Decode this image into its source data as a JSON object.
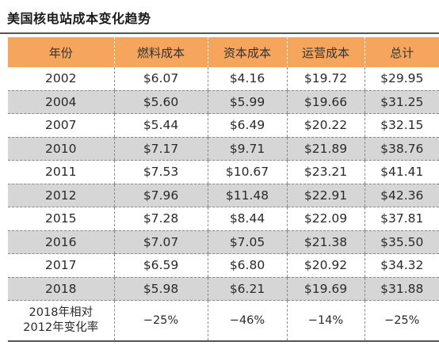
{
  "title": "美国核电站成本变化趋势",
  "table": {
    "headers": [
      "年份",
      "燃料成本",
      "资本成本",
      "运营成本",
      "总计"
    ],
    "rows": [
      [
        "2002",
        "$6.07",
        "$4.16",
        "$19.72",
        "$29.95"
      ],
      [
        "2004",
        "$5.60",
        "$5.99",
        "$19.66",
        "$31.25"
      ],
      [
        "2007",
        "$5.44",
        "$6.49",
        "$20.22",
        "$32.15"
      ],
      [
        "2010",
        "$7.17",
        "$9.71",
        "$21.89",
        "$38.76"
      ],
      [
        "2011",
        "$7.53",
        "$10.67",
        "$23.21",
        "$41.41"
      ],
      [
        "2012",
        "$7.96",
        "$11.48",
        "$22.91",
        "$42.36"
      ],
      [
        "2015",
        "$7.28",
        "$8.44",
        "$22.09",
        "$37.81"
      ],
      [
        "2016",
        "$7.07",
        "$7.05",
        "$21.38",
        "$35.50"
      ],
      [
        "2017",
        "$6.59",
        "$6.80",
        "$20.92",
        "$34.32"
      ],
      [
        "2018",
        "$5.98",
        "$6.21",
        "$19.69",
        "$31.88"
      ]
    ],
    "change_row": {
      "label_line1": "2018年相对",
      "label_line2": "2012年变化率",
      "values": [
        "−25%",
        "−46%",
        "−14%",
        "−25%"
      ]
    }
  }
}
